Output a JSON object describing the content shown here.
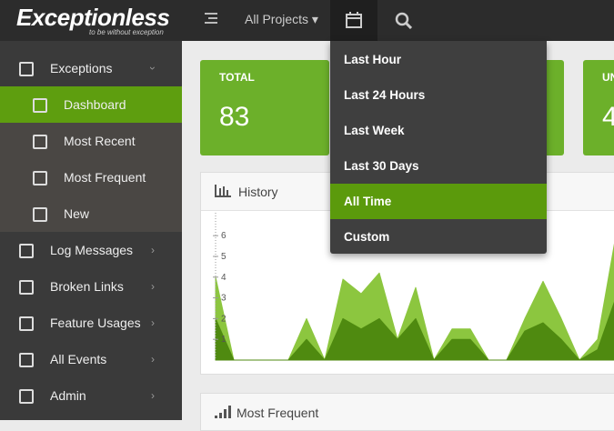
{
  "header": {
    "logo": "Exceptionless",
    "tagline": "to be without exception",
    "project_selector": "All Projects"
  },
  "sidebar": {
    "items": [
      {
        "label": "Exceptions",
        "children": [
          "Dashboard",
          "Most Recent",
          "Most Frequent",
          "New"
        ]
      },
      {
        "label": "Log Messages"
      },
      {
        "label": "Broken Links"
      },
      {
        "label": "Feature Usages"
      },
      {
        "label": "All Events"
      },
      {
        "label": "Admin"
      }
    ],
    "active_child": 0
  },
  "cards": [
    {
      "label": "TOTAL",
      "value": 83
    },
    {
      "label": "UN",
      "value": 4
    }
  ],
  "time_menu": {
    "items": [
      "Last Hour",
      "Last 24 Hours",
      "Last Week",
      "Last 30 Days",
      "All Time",
      "Custom"
    ],
    "selected": 4
  },
  "panels": {
    "most_frequent_title": "Most Frequent"
  },
  "chart_data": {
    "type": "area",
    "title": "History",
    "ylim": [
      0,
      6.6
    ],
    "yticks": [
      1,
      2,
      3,
      4,
      5,
      6
    ],
    "series": [
      {
        "color": "#8cc63f",
        "values": [
          4,
          0,
          0,
          0,
          0,
          2,
          0,
          3.9,
          3.2,
          4.2,
          1,
          3.5,
          0,
          1.5,
          1.5,
          0,
          0,
          2,
          3.8,
          2,
          0,
          1,
          6
        ]
      },
      {
        "color": "#4f8a10",
        "values": [
          2,
          0,
          0,
          0,
          0,
          1,
          0,
          2,
          1.5,
          2,
          1,
          2,
          0,
          1,
          1,
          0,
          0,
          1.4,
          1.8,
          1,
          0,
          0.5,
          3
        ]
      }
    ]
  }
}
